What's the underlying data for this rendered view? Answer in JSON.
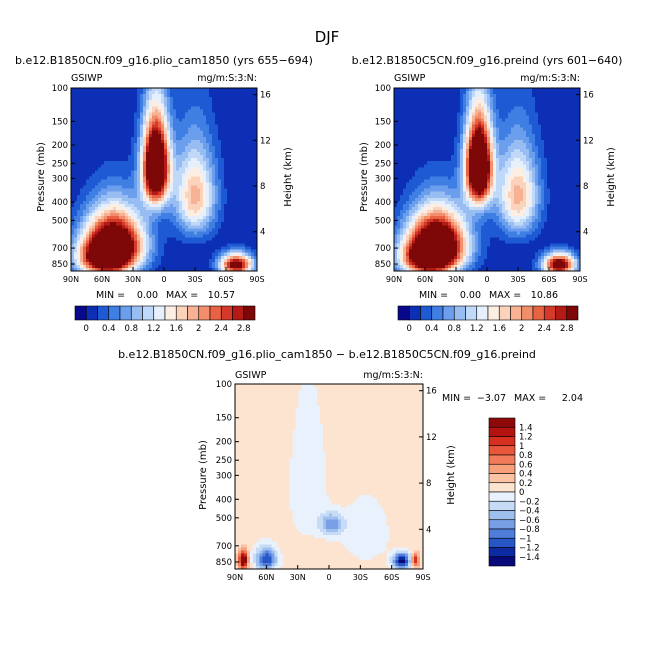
{
  "figure_title": "DJF",
  "chart_data": [
    {
      "type": "heatmap",
      "title": "b.e12.B1850CN.f09_g16.plio_cam1850 (yrs 655−694)",
      "left_label": "GSIWP",
      "right_label": "mg/m:S:3:N:",
      "xlabel": "",
      "ylabel": "Pressure (mb)",
      "y2label": "Height (km)",
      "x_ticks": [
        "90N",
        "60N",
        "30N",
        "0",
        "30S",
        "60S",
        "90S"
      ],
      "y_ticks": [
        "100",
        "150",
        "200",
        "250",
        "300",
        "400",
        "500",
        "700",
        "850"
      ],
      "y2_ticks": [
        "16",
        "12",
        "8",
        "4"
      ],
      "xlim": [
        90,
        -90
      ],
      "ylim": [
        100,
        925
      ],
      "min_label": "MIN =",
      "min_value": "0.00",
      "max_label": "MAX =",
      "max_value": "10.57",
      "features": [
        {
          "lat": 8,
          "p": 260,
          "amp": 4.5,
          "slat": 9,
          "sp": 95
        },
        {
          "lat": 48,
          "p": 650,
          "amp": 3.6,
          "slat": 20,
          "sp": 170
        },
        {
          "lat": 58,
          "p": 800,
          "amp": 2.5,
          "slat": 18,
          "sp": 120
        },
        {
          "lat": -30,
          "p": 370,
          "amp": 1.9,
          "slat": 14,
          "sp": 140
        },
        {
          "lat": -70,
          "p": 855,
          "amp": 3.2,
          "slat": 11,
          "sp": 80
        }
      ]
    },
    {
      "type": "heatmap",
      "title": "b.e12.B1850C5CN.f09_g16.preind (yrs 601−640)",
      "left_label": "GSIWP",
      "right_label": "mg/m:S:3:N:",
      "xlabel": "",
      "ylabel": "Pressure (mb)",
      "y2label": "Height (km)",
      "x_ticks": [
        "90N",
        "60N",
        "30N",
        "0",
        "30S",
        "60S",
        "90S"
      ],
      "y_ticks": [
        "100",
        "150",
        "200",
        "250",
        "300",
        "400",
        "500",
        "700",
        "850"
      ],
      "y2_ticks": [
        "16",
        "12",
        "8",
        "4"
      ],
      "xlim": [
        90,
        -90
      ],
      "ylim": [
        100,
        925
      ],
      "min_label": "MIN =",
      "min_value": "0.00",
      "max_label": "MAX =",
      "max_value": "10.86",
      "features": [
        {
          "lat": 8,
          "p": 260,
          "amp": 4.6,
          "slat": 9,
          "sp": 95
        },
        {
          "lat": 48,
          "p": 650,
          "amp": 3.7,
          "slat": 20,
          "sp": 170
        },
        {
          "lat": 58,
          "p": 800,
          "amp": 2.5,
          "slat": 18,
          "sp": 120
        },
        {
          "lat": -30,
          "p": 370,
          "amp": 1.9,
          "slat": 14,
          "sp": 140
        },
        {
          "lat": -70,
          "p": 855,
          "amp": 3.3,
          "slat": 11,
          "sp": 80
        }
      ]
    },
    {
      "type": "heatmap",
      "title": "b.e12.B1850CN.f09_g16.plio_cam1850 − b.e12.B1850C5CN.f09_g16.preind",
      "left_label": "GSIWP",
      "right_label": "mg/m:S:3:N:",
      "xlabel": "",
      "ylabel": "Pressure (mb)",
      "y2label": "Height (km)",
      "x_ticks": [
        "90N",
        "60N",
        "30N",
        "0",
        "30S",
        "60S",
        "90S"
      ],
      "y_ticks": [
        "100",
        "150",
        "200",
        "250",
        "300",
        "400",
        "500",
        "700",
        "850"
      ],
      "y2_ticks": [
        "16",
        "12",
        "8",
        "4"
      ],
      "xlim": [
        90,
        -90
      ],
      "ylim": [
        100,
        925
      ],
      "min_label": "MIN =",
      "min_value": "−3.07",
      "max_label": "MAX =",
      "max_value": "2.04",
      "features": [
        {
          "lat": 82,
          "p": 830,
          "amp": 1.8,
          "slat": 3,
          "sp": 60
        },
        {
          "lat": 60,
          "p": 820,
          "amp": -1.3,
          "slat": 7,
          "sp": 80
        },
        {
          "lat": -3,
          "p": 540,
          "amp": -0.85,
          "slat": 8,
          "sp": 50
        },
        {
          "lat": -70,
          "p": 840,
          "amp": -1.6,
          "slat": 6,
          "sp": 55
        },
        {
          "lat": -82,
          "p": 830,
          "amp": 1.2,
          "slat": 3,
          "sp": 45
        },
        {
          "lat": 20,
          "p": 350,
          "amp": -0.3,
          "slat": 12,
          "sp": 180
        },
        {
          "lat": -35,
          "p": 600,
          "amp": -0.3,
          "slat": 15,
          "sp": 150
        }
      ],
      "background": 0.1
    }
  ],
  "colorbars": [
    {
      "orientation": "horizontal",
      "tick_labels": [
        "0",
        "0.4",
        "0.8",
        "1.2",
        "1.6",
        "2",
        "2.4",
        "2.8"
      ],
      "colors": [
        "#08088c",
        "#0d2fb5",
        "#1f5ad5",
        "#3f7ee3",
        "#6b9eec",
        "#98bdf3",
        "#c1d9f9",
        "#e6f0fd",
        "#fdeee4",
        "#fbd3bd",
        "#f7b294",
        "#f28e6c",
        "#e86344",
        "#d5392a",
        "#b51b16",
        "#7e0707"
      ]
    },
    {
      "orientation": "horizontal",
      "tick_labels": [
        "0",
        "0.4",
        "0.8",
        "1.2",
        "1.6",
        "2",
        "2.4",
        "2.8"
      ],
      "colors": [
        "#08088c",
        "#0d2fb5",
        "#1f5ad5",
        "#3f7ee3",
        "#6b9eec",
        "#98bdf3",
        "#c1d9f9",
        "#e6f0fd",
        "#fdeee4",
        "#fbd3bd",
        "#f7b294",
        "#f28e6c",
        "#e86344",
        "#d5392a",
        "#b51b16",
        "#7e0707"
      ]
    },
    {
      "orientation": "vertical",
      "tick_labels": [
        "1.4",
        "1.2",
        "1",
        "0.8",
        "0.6",
        "0.4",
        "0.2",
        "0",
        "−0.2",
        "−0.4",
        "−0.6",
        "−0.8",
        "−1",
        "−1.2",
        "−1.4"
      ],
      "colors": [
        "#8e0a0a",
        "#b3140f",
        "#d42f1f",
        "#e9573a",
        "#f27c59",
        "#f8a07c",
        "#fbc2a3",
        "#fde4d1",
        "#e8f1fc",
        "#c6dbf6",
        "#9fc0ef",
        "#789fe6",
        "#4f7dd9",
        "#2756c6",
        "#0e2aa3",
        "#07097b"
      ]
    }
  ]
}
